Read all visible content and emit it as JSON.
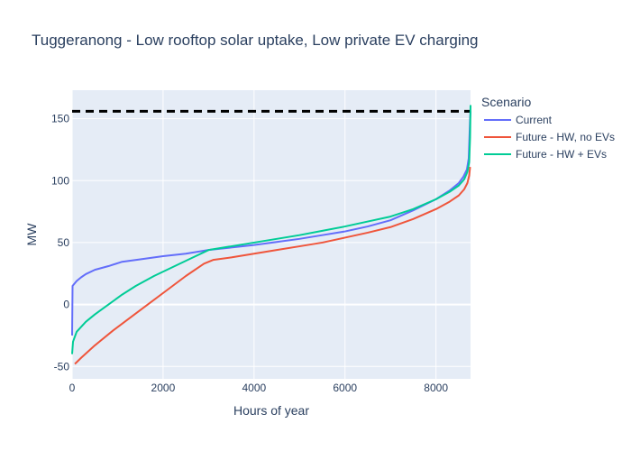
{
  "chart_data": {
    "type": "line",
    "title": "Tuggeranong - Low rooftop solar uptake, Low private EV charging",
    "xlabel": "Hours of year",
    "ylabel": "MW",
    "xlim": [
      0,
      8760
    ],
    "ylim": [
      -60,
      173
    ],
    "x_ticks": [
      0,
      2000,
      4000,
      6000,
      8000
    ],
    "y_ticks": [
      -50,
      0,
      50,
      100,
      150
    ],
    "grid": true,
    "legend_title": "Scenario",
    "legend_position": "top-right",
    "reference_line": {
      "y": 156,
      "style": "dashed",
      "color": "#000000"
    },
    "series": [
      {
        "name": "Current",
        "color": "#636efa",
        "points": [
          [
            0,
            -25
          ],
          [
            10,
            15
          ],
          [
            100,
            19
          ],
          [
            200,
            22
          ],
          [
            300,
            24.5
          ],
          [
            500,
            28
          ],
          [
            800,
            31
          ],
          [
            1100,
            34.5
          ],
          [
            1500,
            36.5
          ],
          [
            2000,
            39
          ],
          [
            2500,
            41
          ],
          [
            3000,
            44
          ],
          [
            3500,
            46
          ],
          [
            4000,
            48
          ],
          [
            4500,
            50.5
          ],
          [
            5000,
            53
          ],
          [
            5500,
            56
          ],
          [
            6000,
            59
          ],
          [
            6500,
            63
          ],
          [
            7000,
            68
          ],
          [
            7500,
            76
          ],
          [
            8000,
            85
          ],
          [
            8300,
            92
          ],
          [
            8500,
            98
          ],
          [
            8600,
            103
          ],
          [
            8680,
            109
          ],
          [
            8720,
            118
          ],
          [
            8750,
            150
          ],
          [
            8760,
            156
          ]
        ]
      },
      {
        "name": "Future - HW, no EVs",
        "color": "#ef553b",
        "points": [
          [
            60,
            -48
          ],
          [
            200,
            -43
          ],
          [
            500,
            -33
          ],
          [
            900,
            -21
          ],
          [
            1300,
            -10
          ],
          [
            1700,
            1
          ],
          [
            2100,
            12
          ],
          [
            2500,
            23
          ],
          [
            2900,
            33
          ],
          [
            3100,
            36
          ],
          [
            3500,
            38
          ],
          [
            4000,
            41
          ],
          [
            4500,
            44
          ],
          [
            5000,
            47
          ],
          [
            5500,
            50
          ],
          [
            6000,
            54
          ],
          [
            6500,
            58
          ],
          [
            7000,
            62.5
          ],
          [
            7500,
            69
          ],
          [
            8000,
            77
          ],
          [
            8300,
            83
          ],
          [
            8500,
            88
          ],
          [
            8620,
            93
          ],
          [
            8690,
            98
          ],
          [
            8730,
            104
          ],
          [
            8750,
            111
          ]
        ]
      },
      {
        "name": "Future - HW + EVs",
        "color": "#00cc96",
        "points": [
          [
            0,
            -40
          ],
          [
            20,
            -30
          ],
          [
            100,
            -22
          ],
          [
            300,
            -14
          ],
          [
            500,
            -8
          ],
          [
            800,
            0
          ],
          [
            1100,
            8
          ],
          [
            1400,
            15
          ],
          [
            1800,
            23
          ],
          [
            2200,
            30
          ],
          [
            2600,
            37
          ],
          [
            3000,
            44
          ],
          [
            3500,
            47
          ],
          [
            4000,
            50
          ],
          [
            4500,
            53
          ],
          [
            5000,
            56
          ],
          [
            5500,
            59.5
          ],
          [
            6000,
            63
          ],
          [
            6500,
            67
          ],
          [
            7000,
            71
          ],
          [
            7500,
            77
          ],
          [
            8000,
            85
          ],
          [
            8300,
            91
          ],
          [
            8500,
            96
          ],
          [
            8620,
            101
          ],
          [
            8690,
            107
          ],
          [
            8730,
            115
          ],
          [
            8750,
            135
          ],
          [
            8760,
            161
          ]
        ]
      }
    ]
  }
}
